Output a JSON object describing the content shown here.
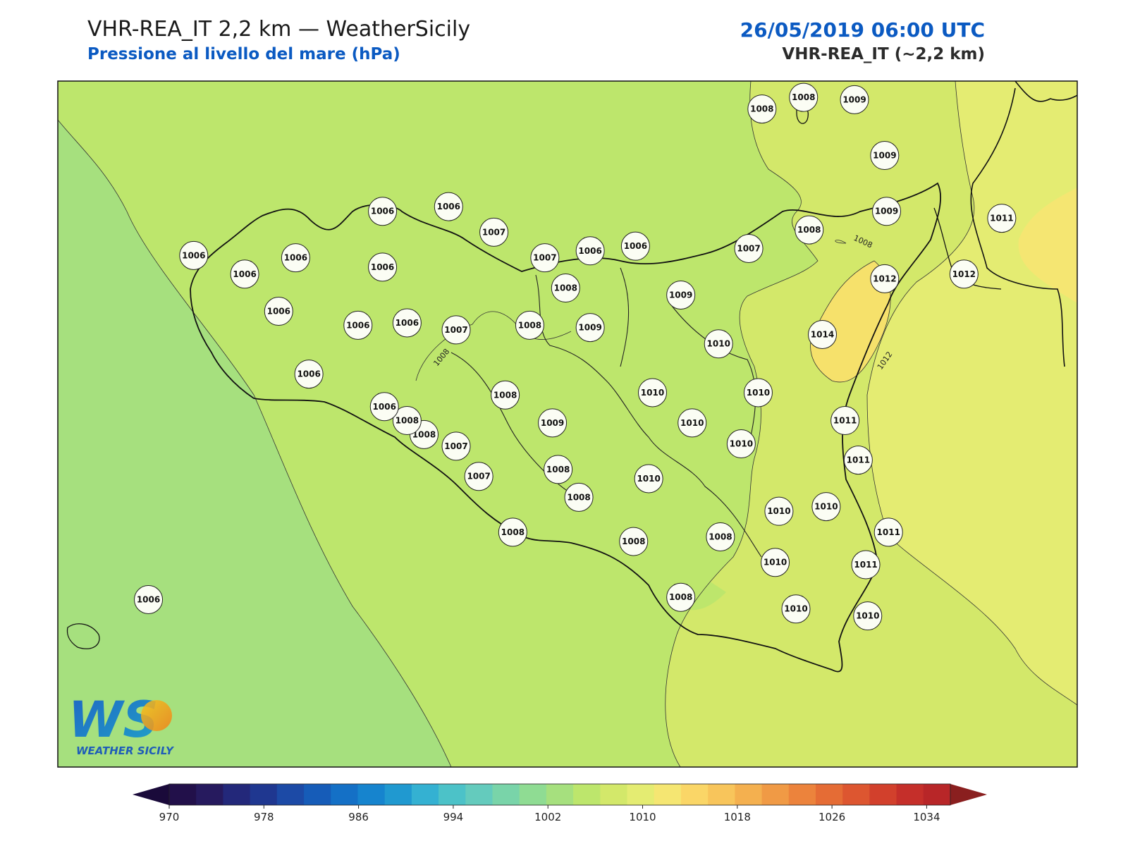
{
  "header": {
    "title": "VHR-REA_IT 2,2 km — WeatherSicily",
    "subtitle": "Pressione al livello del mare (hPa)",
    "datetime": "26/05/2019 06:00 UTC",
    "model": "VHR-REA_IT (~2,2 km)"
  },
  "logo": {
    "text": "WEATHER SICILY",
    "letters": "WS"
  },
  "colorbar": {
    "ticks": [
      "970",
      "978",
      "986",
      "994",
      "1002",
      "1010",
      "1018",
      "1026",
      "1034"
    ],
    "colors": [
      "#22104a",
      "#261a5e",
      "#23287a",
      "#1f3790",
      "#1c4aa6",
      "#165cb8",
      "#1470c6",
      "#1684ce",
      "#2099d0",
      "#34b1d2",
      "#4cc2c8",
      "#64cbbd",
      "#79d4a9",
      "#8fdc93",
      "#a6e07e",
      "#bde66c",
      "#d3e86a",
      "#e4ec72",
      "#f5e672",
      "#fad667",
      "#f8c55b",
      "#f4b04f",
      "#f09a45",
      "#ec833c",
      "#e56c35",
      "#dd5630",
      "#d2402c",
      "#c52f2a",
      "#b82628"
    ],
    "min": 970,
    "max": 1036
  },
  "stations": [
    {
      "label": "1008",
      "lon": 14.33,
      "lat": 39.43
    },
    {
      "label": "1008",
      "lon": 14.55,
      "lat": 39.48
    },
    {
      "label": "1009",
      "lon": 14.82,
      "lat": 39.47
    },
    {
      "label": "1009",
      "lon": 14.98,
      "lat": 39.23
    },
    {
      "label": "1006",
      "lon": 12.32,
      "lat": 38.99
    },
    {
      "label": "1006",
      "lon": 12.67,
      "lat": 39.01
    },
    {
      "label": "1007",
      "lon": 12.91,
      "lat": 38.9
    },
    {
      "label": "1007",
      "lon": 13.18,
      "lat": 38.79
    },
    {
      "label": "1006",
      "lon": 13.42,
      "lat": 38.82
    },
    {
      "label": "1006",
      "lon": 13.66,
      "lat": 38.84
    },
    {
      "label": "1007",
      "lon": 14.26,
      "lat": 38.83
    },
    {
      "label": "1008",
      "lon": 14.58,
      "lat": 38.91
    },
    {
      "label": "1009",
      "lon": 14.99,
      "lat": 38.99
    },
    {
      "label": "1011",
      "lon": 15.6,
      "lat": 38.96
    },
    {
      "label": "1012",
      "lon": 15.4,
      "lat": 38.72
    },
    {
      "label": "1012",
      "lon": 14.98,
      "lat": 38.7
    },
    {
      "label": "1006",
      "lon": 11.32,
      "lat": 38.8
    },
    {
      "label": "1006",
      "lon": 11.59,
      "lat": 38.72
    },
    {
      "label": "1006",
      "lon": 11.86,
      "lat": 38.79
    },
    {
      "label": "1006",
      "lon": 12.32,
      "lat": 38.75
    },
    {
      "label": "1008",
      "lon": 13.29,
      "lat": 38.66
    },
    {
      "label": "1009",
      "lon": 13.9,
      "lat": 38.63
    },
    {
      "label": "1006",
      "lon": 11.77,
      "lat": 38.56
    },
    {
      "label": "1006",
      "lon": 12.19,
      "lat": 38.5
    },
    {
      "label": "1006",
      "lon": 12.45,
      "lat": 38.51
    },
    {
      "label": "1007",
      "lon": 12.71,
      "lat": 38.48
    },
    {
      "label": "1008",
      "lon": 13.1,
      "lat": 38.5
    },
    {
      "label": "1009",
      "lon": 13.42,
      "lat": 38.49
    },
    {
      "label": "1010",
      "lon": 14.1,
      "lat": 38.42
    },
    {
      "label": "1014",
      "lon": 14.65,
      "lat": 38.46
    },
    {
      "label": "1006",
      "lon": 11.93,
      "lat": 38.29
    },
    {
      "label": "1008",
      "lon": 12.97,
      "lat": 38.2
    },
    {
      "label": "1010",
      "lon": 13.75,
      "lat": 38.21
    },
    {
      "label": "1010",
      "lon": 14.31,
      "lat": 38.21
    },
    {
      "label": "1008",
      "lon": 12.54,
      "lat": 38.03
    },
    {
      "label": "1008",
      "lon": 12.45,
      "lat": 38.09
    },
    {
      "label": "1009",
      "lon": 13.22,
      "lat": 38.08
    },
    {
      "label": "1010",
      "lon": 13.96,
      "lat": 38.08
    },
    {
      "label": "1011",
      "lon": 14.77,
      "lat": 38.09
    },
    {
      "label": "1006",
      "lon": 12.33,
      "lat": 38.15
    },
    {
      "label": "1007",
      "lon": 12.71,
      "lat": 37.98
    },
    {
      "label": "1010",
      "lon": 14.22,
      "lat": 37.99
    },
    {
      "label": "1007",
      "lon": 12.83,
      "lat": 37.85
    },
    {
      "label": "1008",
      "lon": 13.25,
      "lat": 37.88
    },
    {
      "label": "1010",
      "lon": 13.73,
      "lat": 37.84
    },
    {
      "label": "1011",
      "lon": 14.84,
      "lat": 37.92
    },
    {
      "label": "1008",
      "lon": 13.36,
      "lat": 37.76
    },
    {
      "label": "1010",
      "lon": 14.42,
      "lat": 37.7
    },
    {
      "label": "1010",
      "lon": 14.67,
      "lat": 37.72
    },
    {
      "label": "1008",
      "lon": 13.01,
      "lat": 37.61
    },
    {
      "label": "1008",
      "lon": 13.65,
      "lat": 37.57
    },
    {
      "label": "1008",
      "lon": 14.11,
      "lat": 37.59
    },
    {
      "label": "1011",
      "lon": 15.0,
      "lat": 37.61
    },
    {
      "label": "1010",
      "lon": 14.4,
      "lat": 37.48
    },
    {
      "label": "1011",
      "lon": 14.88,
      "lat": 37.47
    },
    {
      "label": "1008",
      "lon": 13.9,
      "lat": 37.33
    },
    {
      "label": "1010",
      "lon": 14.51,
      "lat": 37.28
    },
    {
      "label": "1010",
      "lon": 14.89,
      "lat": 37.25
    },
    {
      "label": "1006",
      "lon": 11.08,
      "lat": 37.32
    }
  ],
  "contour_labels": [
    "1008",
    "1008",
    "1012"
  ]
}
